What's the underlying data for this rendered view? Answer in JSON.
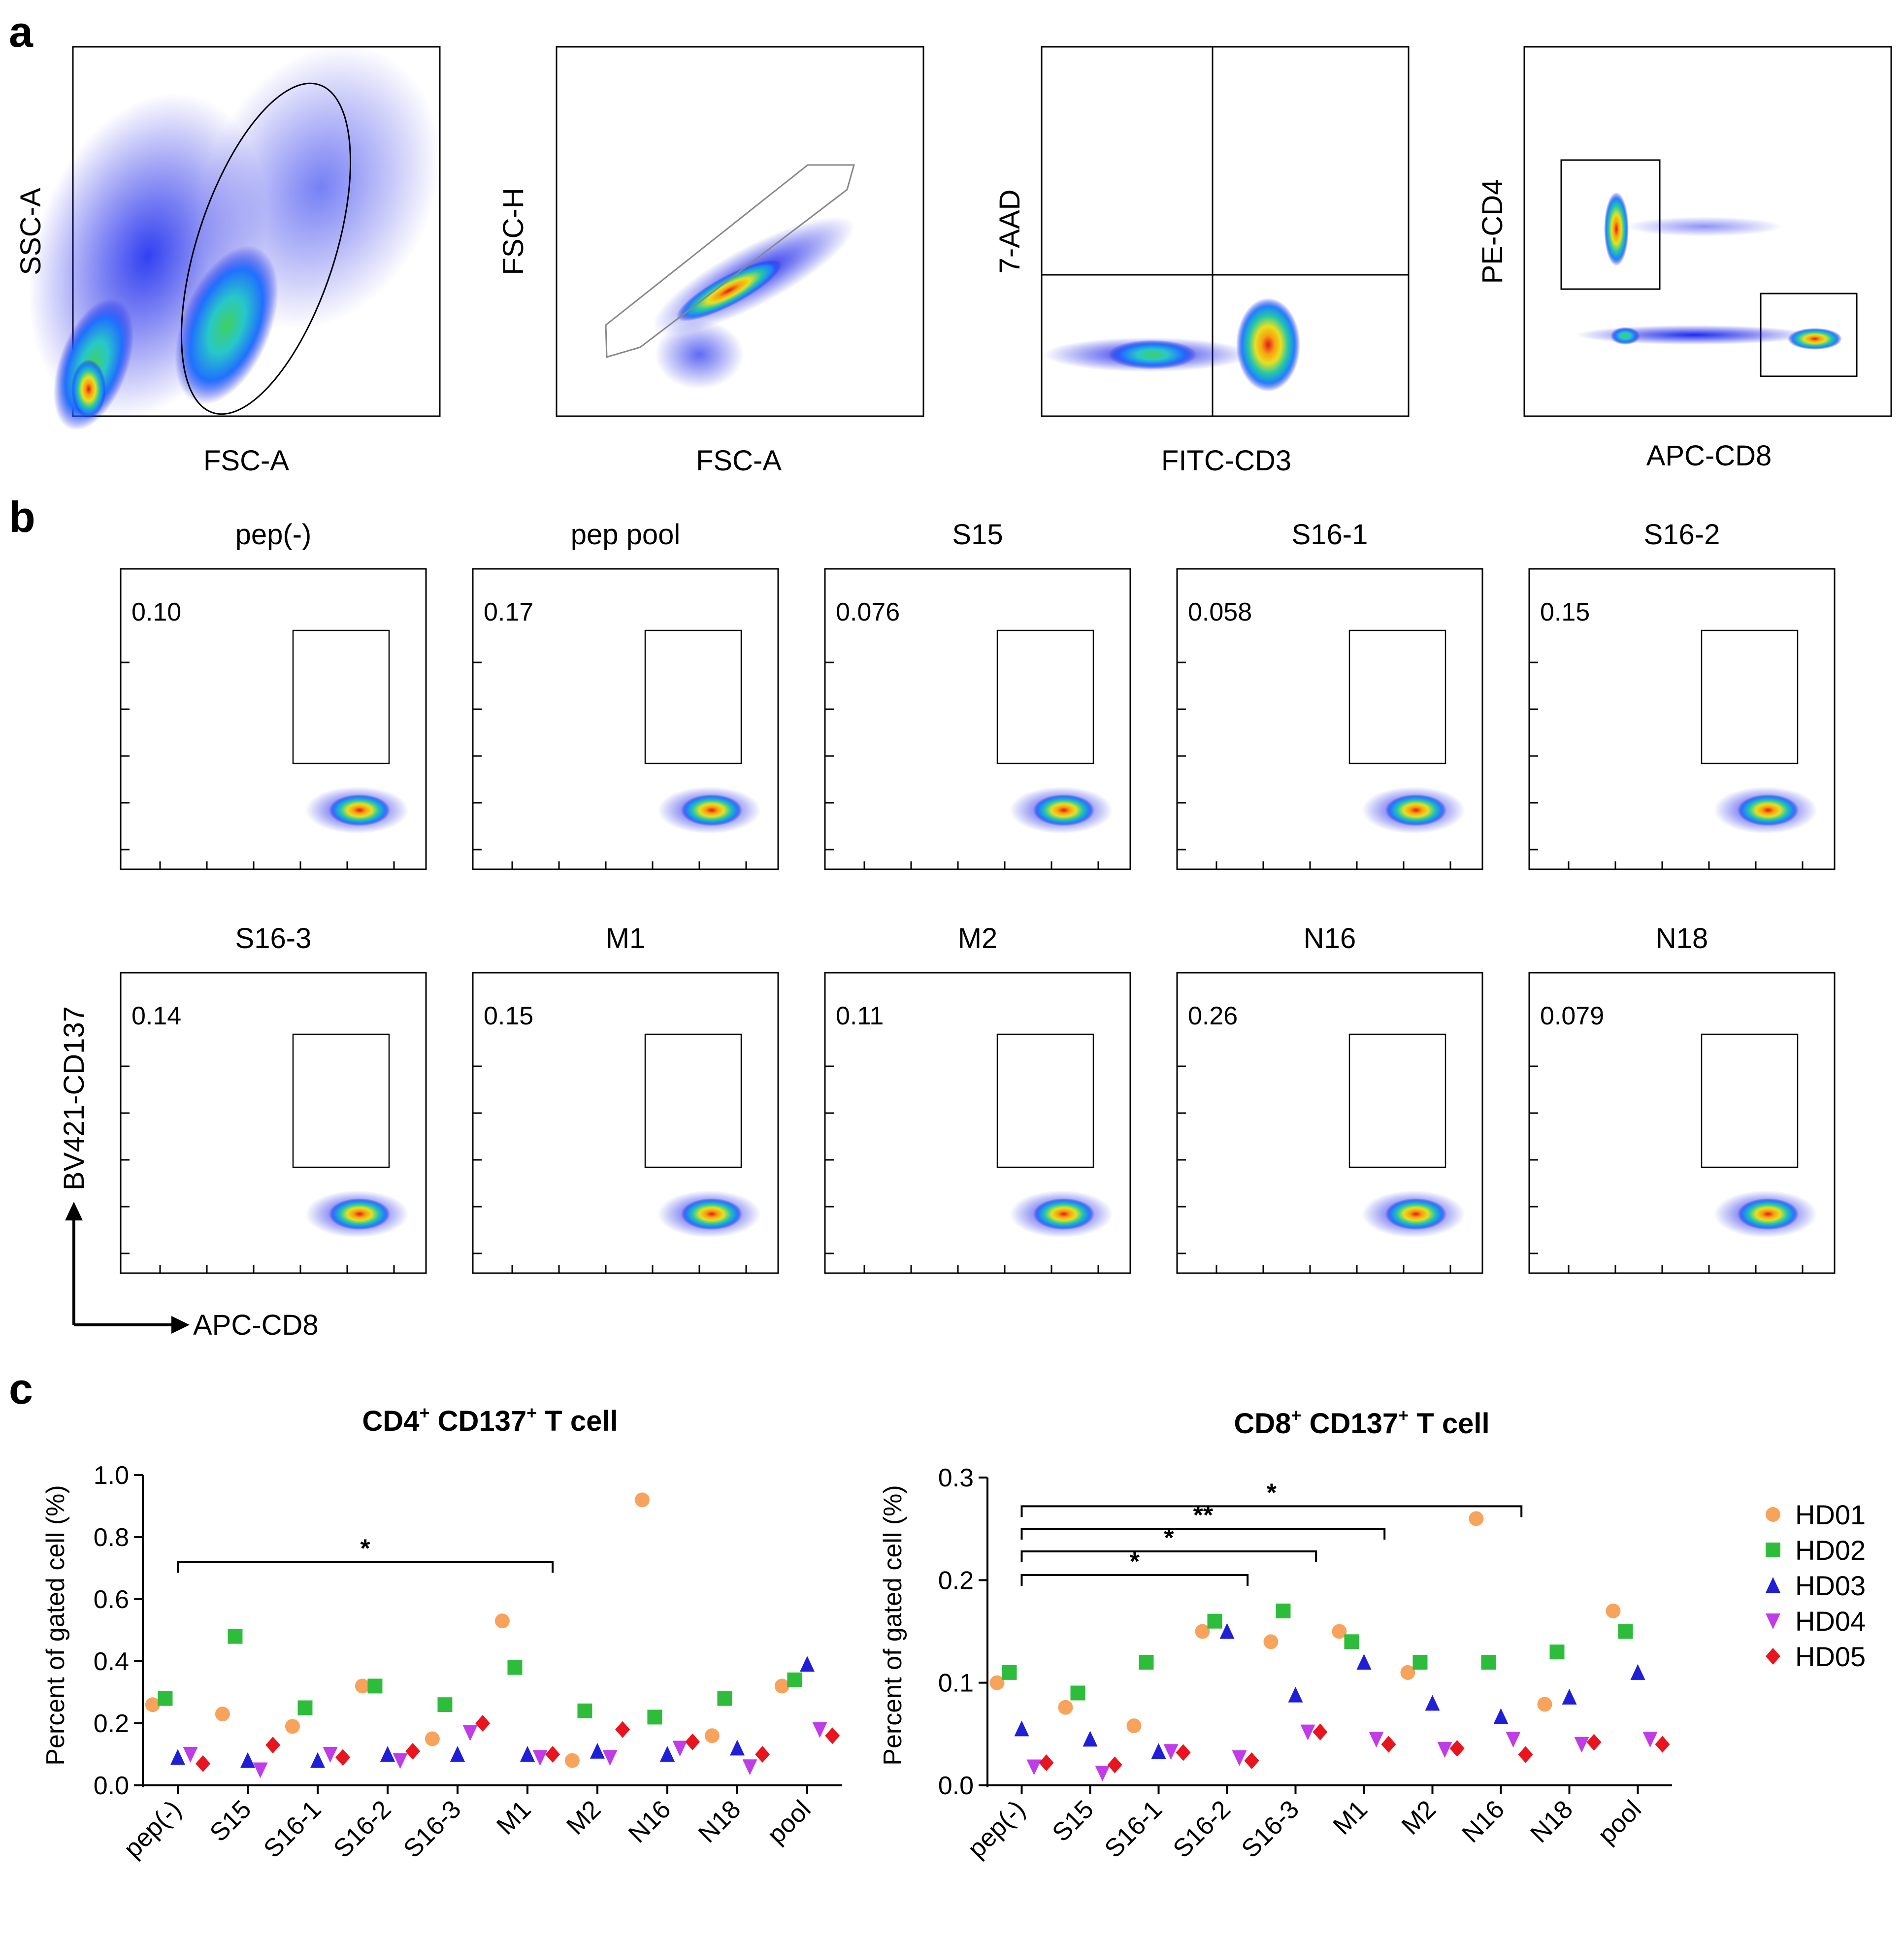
{
  "panels": {
    "a": "a",
    "b": "b",
    "c": "c"
  },
  "gating": {
    "plots": [
      {
        "xlabel": "FSC-A",
        "ylabel": "SSC-A"
      },
      {
        "xlabel": "FSC-A",
        "ylabel": "FSC-H"
      },
      {
        "xlabel": "FITC-CD3",
        "ylabel": "7-AAD"
      },
      {
        "xlabel": "APC-CD8",
        "ylabel": "PE-CD4"
      }
    ]
  },
  "stim": {
    "ylabel": "BV421-CD137",
    "xlabel": "APC-CD8",
    "plots": [
      {
        "title": "pep(-)",
        "pct": "0.10"
      },
      {
        "title": "pep pool",
        "pct": "0.17"
      },
      {
        "title": "S15",
        "pct": "0.076"
      },
      {
        "title": "S16-1",
        "pct": "0.058"
      },
      {
        "title": "S16-2",
        "pct": "0.15"
      },
      {
        "title": "S16-3",
        "pct": "0.14"
      },
      {
        "title": "M1",
        "pct": "0.15"
      },
      {
        "title": "M2",
        "pct": "0.11"
      },
      {
        "title": "N16",
        "pct": "0.26"
      },
      {
        "title": "N18",
        "pct": "0.079"
      }
    ]
  },
  "legend": {
    "items": [
      {
        "label": "HD01",
        "color": "#F7A35C",
        "marker": "circle"
      },
      {
        "label": "HD02",
        "color": "#2EBD3B",
        "marker": "square"
      },
      {
        "label": "HD03",
        "color": "#1F1FD8",
        "marker": "triangle-up"
      },
      {
        "label": "HD04",
        "color": "#C03CE8",
        "marker": "triangle-down"
      },
      {
        "label": "HD05",
        "color": "#E8141E",
        "marker": "diamond"
      }
    ]
  },
  "chart_data": [
    {
      "type": "scatter",
      "title_main": "CD4",
      "title_sup1": "+",
      "title_mid": " CD137",
      "title_sup2": "+",
      "title_end": " T cell",
      "ylabel": "Percent of gated cell (%)",
      "ylim": [
        0,
        1.0
      ],
      "yticks": [
        "0.0",
        "0.2",
        "0.4",
        "0.6",
        "0.8",
        "1.0"
      ],
      "yticks_values": [
        0,
        0.2,
        0.4,
        0.6,
        0.8,
        1.0
      ],
      "categories": [
        "pep(-)",
        "S15",
        "S16-1",
        "S16-2",
        "S16-3",
        "M1",
        "M2",
        "N16",
        "N18",
        "pool"
      ],
      "series": [
        {
          "name": "HD01",
          "values": [
            0.26,
            0.23,
            0.19,
            0.32,
            0.15,
            0.53,
            0.08,
            0.92,
            0.16,
            0.32
          ]
        },
        {
          "name": "HD02",
          "values": [
            0.28,
            0.48,
            0.25,
            0.32,
            0.26,
            0.38,
            0.24,
            0.22,
            0.28,
            0.34
          ]
        },
        {
          "name": "HD03",
          "values": [
            0.09,
            0.08,
            0.08,
            0.1,
            0.1,
            0.1,
            0.11,
            0.1,
            0.12,
            0.39
          ]
        },
        {
          "name": "HD04",
          "values": [
            0.1,
            0.05,
            0.1,
            0.08,
            0.17,
            0.09,
            0.09,
            0.12,
            0.06,
            0.18
          ]
        },
        {
          "name": "HD05",
          "values": [
            0.07,
            0.13,
            0.09,
            0.11,
            0.2,
            0.1,
            0.18,
            0.14,
            0.1,
            0.16
          ]
        }
      ],
      "significance": [
        {
          "from": "pep(-)",
          "to": "M1",
          "label": "*"
        }
      ]
    },
    {
      "type": "scatter",
      "title_main": "CD8",
      "title_sup1": "+",
      "title_mid": " CD137",
      "title_sup2": "+",
      "title_end": " T cell",
      "ylabel": "Percent of gated cell (%)",
      "ylim": [
        0,
        0.3
      ],
      "yticks": [
        "0.0",
        "0.1",
        "0.2",
        "0.3"
      ],
      "yticks_values": [
        0,
        0.1,
        0.2,
        0.3
      ],
      "categories": [
        "pep(-)",
        "S15",
        "S16-1",
        "S16-2",
        "S16-3",
        "M1",
        "M2",
        "N16",
        "N18",
        "pool"
      ],
      "series": [
        {
          "name": "HD01",
          "values": [
            0.1,
            0.076,
            0.058,
            0.15,
            0.14,
            0.15,
            0.11,
            0.26,
            0.079,
            0.17
          ]
        },
        {
          "name": "HD02",
          "values": [
            0.11,
            0.09,
            0.12,
            0.16,
            0.17,
            0.14,
            0.12,
            0.12,
            0.13,
            0.15
          ]
        },
        {
          "name": "HD03",
          "values": [
            0.055,
            0.045,
            0.033,
            0.15,
            0.088,
            0.12,
            0.08,
            0.067,
            0.086,
            0.11
          ]
        },
        {
          "name": "HD04",
          "values": [
            0.018,
            0.012,
            0.033,
            0.027,
            0.052,
            0.045,
            0.035,
            0.045,
            0.04,
            0.045
          ]
        },
        {
          "name": "HD05",
          "values": [
            0.022,
            0.02,
            0.032,
            0.024,
            0.052,
            0.04,
            0.036,
            0.03,
            0.042,
            0.04
          ]
        }
      ],
      "significance": [
        {
          "from": "pep(-)",
          "to": "S16-2",
          "label": "*"
        },
        {
          "from": "pep(-)",
          "to": "S16-3",
          "label": "*"
        },
        {
          "from": "pep(-)",
          "to": "M1",
          "label": "**"
        },
        {
          "from": "pep(-)",
          "to": "N16",
          "label": "*"
        }
      ]
    }
  ]
}
